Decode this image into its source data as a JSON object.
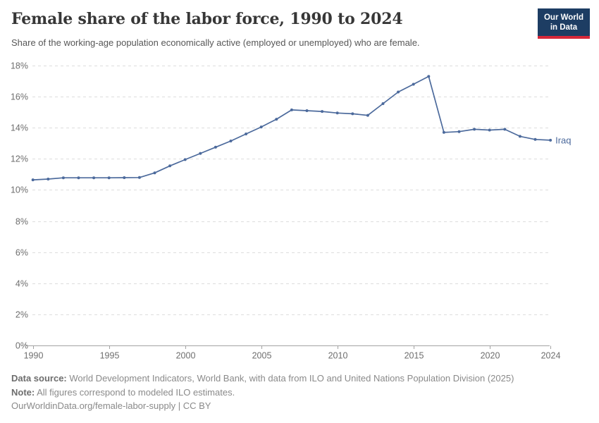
{
  "header": {
    "title": "Female share of the labor force, 1990 to 2024",
    "subtitle": "Share of the working-age population economically active (employed or unemployed) who are female.",
    "logo": {
      "line1": "Our World",
      "line2": "in Data"
    }
  },
  "chart_data": {
    "type": "line",
    "title": "Female share of the labor force, 1990 to 2024",
    "xlabel": "",
    "ylabel": "",
    "xlim": [
      1990,
      2024
    ],
    "ylim": [
      0,
      18
    ],
    "x_ticks": [
      1990,
      1995,
      2000,
      2005,
      2010,
      2015,
      2020,
      2024
    ],
    "y_ticks": [
      0,
      2,
      4,
      6,
      8,
      10,
      12,
      14,
      16,
      18
    ],
    "y_tick_suffix": "%",
    "grid": "horizontal-dashed",
    "legend_position": "end-of-line-label",
    "x": [
      1990,
      1991,
      1992,
      1993,
      1994,
      1995,
      1996,
      1997,
      1998,
      1999,
      2000,
      2001,
      2002,
      2003,
      2004,
      2005,
      2006,
      2007,
      2008,
      2009,
      2010,
      2011,
      2012,
      2013,
      2014,
      2015,
      2016,
      2017,
      2018,
      2019,
      2020,
      2021,
      2022,
      2023,
      2024
    ],
    "series": [
      {
        "name": "Iraq",
        "color": "#4c6a9c",
        "values": [
          10.65,
          10.7,
          10.78,
          10.78,
          10.78,
          10.78,
          10.79,
          10.8,
          11.1,
          11.55,
          11.95,
          12.35,
          12.75,
          13.15,
          13.6,
          14.05,
          14.55,
          15.15,
          15.1,
          15.05,
          14.95,
          14.9,
          14.8,
          15.55,
          16.3,
          16.8,
          17.3,
          13.7,
          13.75,
          13.9,
          13.85,
          13.9,
          13.45,
          13.25,
          13.2
        ]
      }
    ]
  },
  "colors": {
    "line": "#4c6a9c",
    "grid": "#dddddd",
    "axis": "#a3a3a3",
    "tick_label": "#6e6e6e",
    "logo_bg": "#1d3d63",
    "logo_red": "#d62839"
  },
  "footer": {
    "source_label": "Data source:",
    "source_text": " World Development Indicators, World Bank, with data from ILO and United Nations Population Division (2025)",
    "note_label": "Note:",
    "note_text": " All figures correspond to modeled ILO estimates.",
    "url_line": "OurWorldinData.org/female-labor-supply | CC BY"
  }
}
